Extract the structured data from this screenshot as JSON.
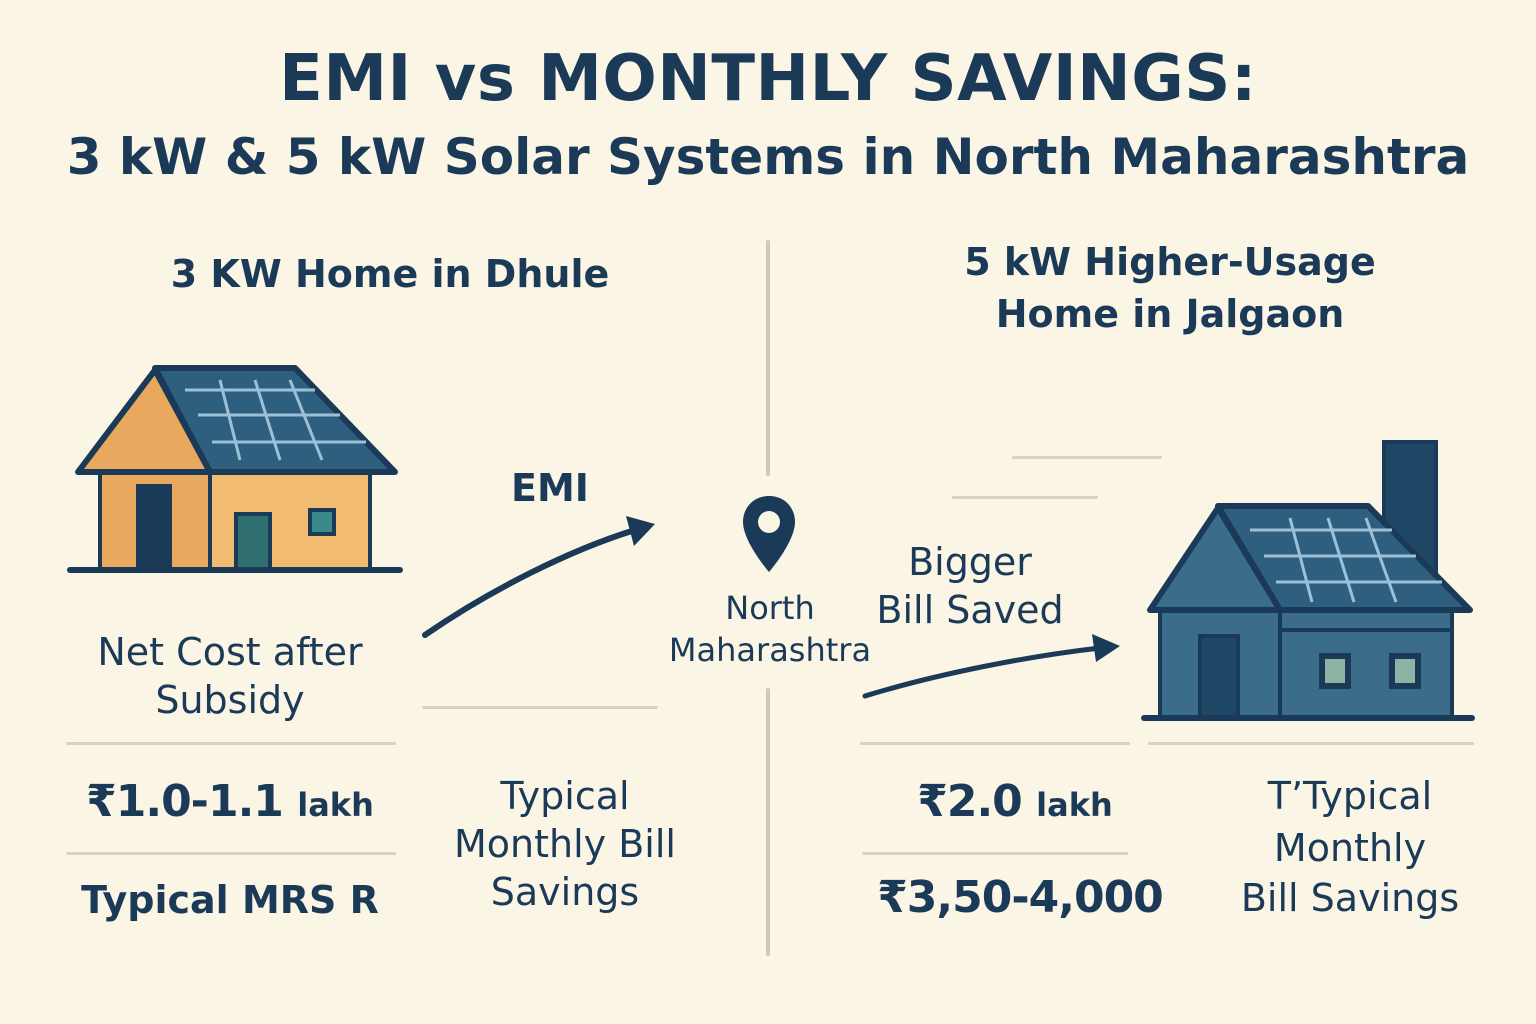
{
  "title": {
    "line1": "EMI vs MONTHLY SAVINGS:",
    "line2": "3 kW & 5 kW Solar Systems in North Maharashtra"
  },
  "left": {
    "heading": "3 KW Home in Dhule",
    "net_cost_label_1": "Net Cost after",
    "net_cost_label_2": "Subsidy",
    "cost_value": "₹1.0-1.1",
    "cost_unit": "lakh",
    "emi_label": "Typical MRS R",
    "arrow_label": "EMI",
    "savings_label_1": "Typical",
    "savings_label_2": "Monthly Bill",
    "savings_label_3": "Savings"
  },
  "center": {
    "location_1": "North",
    "location_2": "Maharashtra",
    "icon": "map-pin-icon"
  },
  "right": {
    "heading_1": "5 kW Higher-Usage",
    "heading_2": "Home in Jalgaon",
    "arrow_label_1": "Bigger",
    "arrow_label_2": "Bill Saved",
    "cost_value": "₹2.0",
    "cost_unit": "lakh",
    "emi_value": "₹3,50-4,000",
    "savings_label_1": "T’Typical",
    "savings_label_2": "Monthly",
    "savings_label_3": "Bill Savings"
  },
  "colors": {
    "background": "#fbf5e6",
    "navy": "#1b3a57",
    "roof_blue": "#2f5f7e",
    "house_orange": "#e8a85d",
    "house_teal": "#3b6d8a"
  }
}
